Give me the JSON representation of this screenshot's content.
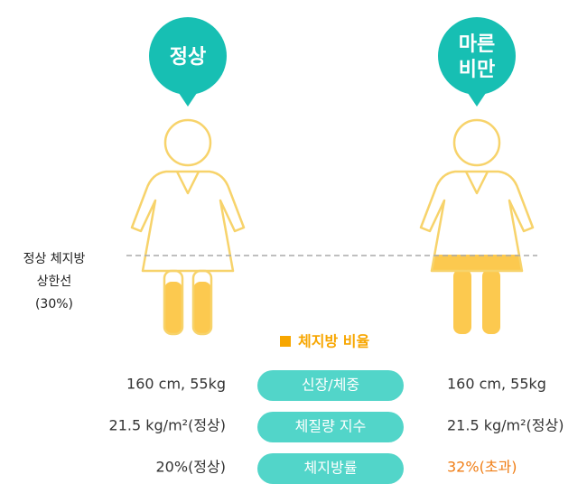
{
  "bubbles": [
    {
      "lines": [
        "정상"
      ]
    },
    {
      "lines": [
        "마른",
        "비만"
      ]
    }
  ],
  "threshold_label": {
    "lines": [
      "정상 체지방",
      "상한선",
      "(30%)"
    ]
  },
  "legend": {
    "label": "체지방 비율"
  },
  "rows": [
    {
      "left": "160 cm, 55kg",
      "label": "신장/체중",
      "right": "160 cm, 55kg"
    },
    {
      "left": "21.5 kg/m²(정상)",
      "label": "체질량 지수",
      "right": "21.5 kg/m²(정상)"
    },
    {
      "left": "20%(정상)",
      "label": "체지방률",
      "right": "32%(초과)"
    }
  ]
}
